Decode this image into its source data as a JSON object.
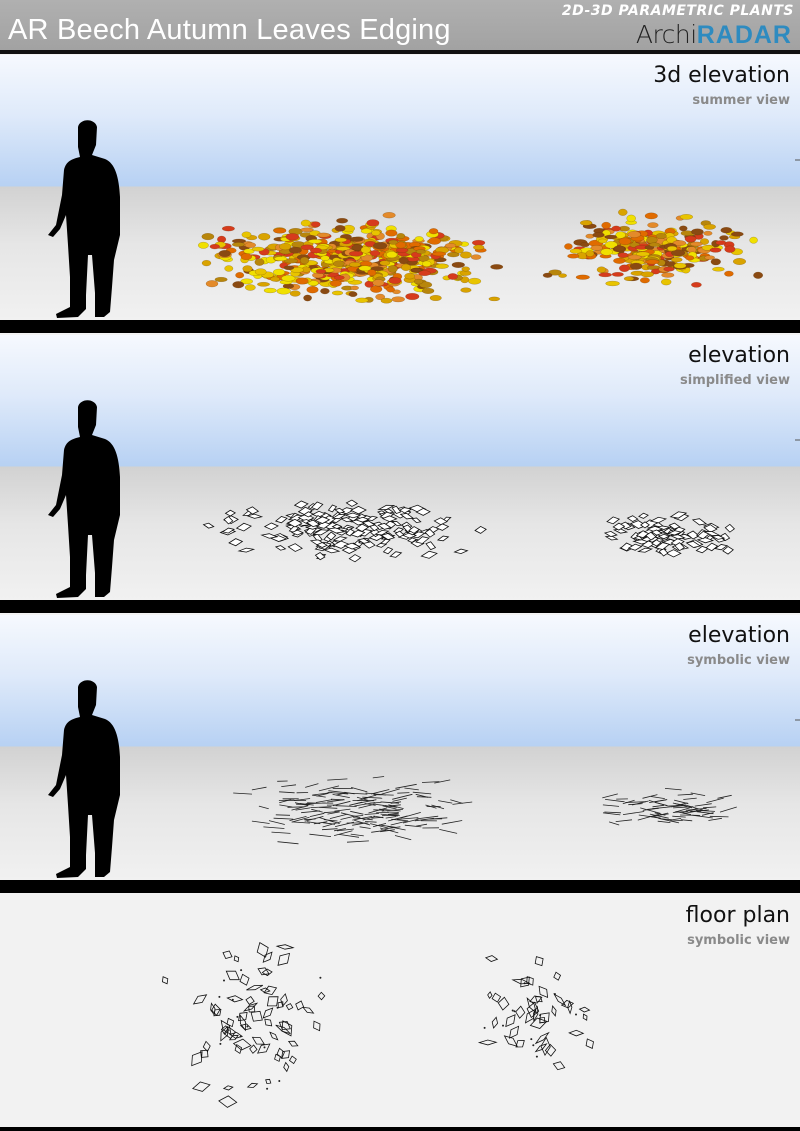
{
  "header": {
    "title": "AR Beech Autumn Leaves Edging",
    "tagline": "2D-3D PARAMETRIC PLANTS",
    "logo": {
      "part1": "Archi",
      "part2": "RADAR"
    },
    "colors": {
      "header_bg": "#a6a6a6",
      "logo_accent": "#2e8bc0"
    }
  },
  "panels": [
    {
      "title": "3d elevation",
      "subtitle": "summer view",
      "style": "colored-leaves"
    },
    {
      "title": "elevation",
      "subtitle": "simplified view",
      "style": "outline-diamonds"
    },
    {
      "title": "elevation",
      "subtitle": "symbolic view",
      "style": "line-strokes"
    },
    {
      "title": "floor plan",
      "subtitle": "symbolic view",
      "style": "plan-diamonds"
    }
  ],
  "leaf_colors": [
    "#e8c400",
    "#d9a300",
    "#e06b00",
    "#f0e000",
    "#d63b1c",
    "#8a4a12",
    "#b8860b",
    "#e38a2a"
  ],
  "figure": "human-silhouette-icon"
}
